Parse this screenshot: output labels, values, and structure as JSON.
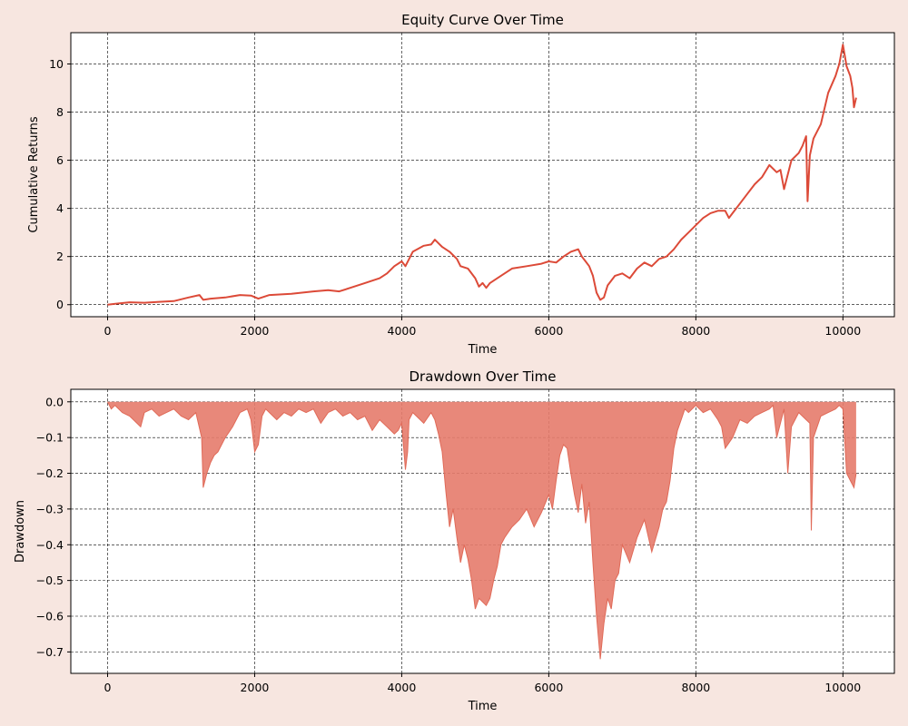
{
  "figure": {
    "background": "#f7e6e0"
  },
  "chart_data": [
    {
      "type": "line",
      "title": "Equity Curve Over Time",
      "xlabel": "Time",
      "ylabel": "Cumulative Returns",
      "xlim": [
        -500,
        10700
      ],
      "ylim": [
        -0.5,
        11.3
      ],
      "xticks": [
        0,
        2000,
        4000,
        6000,
        8000,
        10000
      ],
      "yticks": [
        0,
        2,
        4,
        6,
        8,
        10
      ],
      "grid": true,
      "color": "#dc4a38",
      "x": [
        0,
        150,
        300,
        500,
        700,
        900,
        1100,
        1250,
        1300,
        1400,
        1600,
        1800,
        1950,
        2050,
        2200,
        2500,
        2800,
        3000,
        3150,
        3300,
        3500,
        3700,
        3800,
        3900,
        4000,
        4050,
        4150,
        4300,
        4400,
        4450,
        4500,
        4550,
        4650,
        4750,
        4800,
        4900,
        5000,
        5050,
        5100,
        5150,
        5200,
        5300,
        5500,
        5700,
        5900,
        6000,
        6100,
        6200,
        6300,
        6400,
        6450,
        6500,
        6550,
        6600,
        6650,
        6700,
        6750,
        6800,
        6900,
        7000,
        7100,
        7200,
        7300,
        7400,
        7500,
        7600,
        7700,
        7800,
        7900,
        8000,
        8100,
        8200,
        8300,
        8400,
        8450,
        8500,
        8600,
        8700,
        8800,
        8900,
        9000,
        9100,
        9150,
        9200,
        9300,
        9400,
        9450,
        9500,
        9520,
        9550,
        9600,
        9700,
        9800,
        9900,
        9950,
        10000,
        10050,
        10100,
        10130,
        10150,
        10180
      ],
      "y": [
        0,
        0.05,
        0.1,
        0.08,
        0.12,
        0.15,
        0.3,
        0.4,
        0.2,
        0.25,
        0.3,
        0.4,
        0.38,
        0.25,
        0.4,
        0.45,
        0.55,
        0.6,
        0.55,
        0.7,
        0.9,
        1.1,
        1.3,
        1.6,
        1.8,
        1.6,
        2.2,
        2.45,
        2.5,
        2.7,
        2.55,
        2.4,
        2.2,
        1.9,
        1.6,
        1.5,
        1.1,
        0.75,
        0.9,
        0.7,
        0.9,
        1.1,
        1.5,
        1.6,
        1.7,
        1.8,
        1.75,
        2.0,
        2.2,
        2.3,
        2.0,
        1.8,
        1.6,
        1.2,
        0.5,
        0.2,
        0.3,
        0.8,
        1.2,
        1.3,
        1.1,
        1.5,
        1.75,
        1.6,
        1.9,
        2.0,
        2.3,
        2.7,
        3.0,
        3.3,
        3.6,
        3.8,
        3.9,
        3.9,
        3.6,
        3.8,
        4.2,
        4.6,
        5.0,
        5.3,
        5.8,
        5.5,
        5.6,
        4.8,
        6.0,
        6.3,
        6.6,
        7.0,
        4.3,
        6.2,
        6.9,
        7.5,
        8.8,
        9.5,
        10.0,
        10.8,
        9.9,
        9.5,
        9.0,
        8.2,
        8.6
      ],
      "mark_names": [
        "equity-line"
      ]
    },
    {
      "type": "area",
      "title": "Drawdown Over Time",
      "xlabel": "Time",
      "ylabel": "Drawdown",
      "xlim": [
        -500,
        10700
      ],
      "ylim": [
        -0.76,
        0.035
      ],
      "xticks": [
        0,
        2000,
        4000,
        6000,
        8000,
        10000
      ],
      "yticks": [
        0.0,
        -0.1,
        -0.2,
        -0.3,
        -0.4,
        -0.5,
        -0.6,
        -0.7
      ],
      "ytick_labels": [
        "0.0",
        "−0.1",
        "−0.2",
        "−0.3",
        "−0.4",
        "−0.5",
        "−0.6",
        "−0.7"
      ],
      "grid": true,
      "color": "#e06a58",
      "fill_color": "#e57b6b",
      "x": [
        0,
        50,
        100,
        200,
        300,
        400,
        450,
        500,
        600,
        700,
        800,
        900,
        1000,
        1100,
        1200,
        1280,
        1300,
        1350,
        1400,
        1450,
        1500,
        1600,
        1700,
        1750,
        1800,
        1900,
        1950,
        2000,
        2050,
        2100,
        2150,
        2200,
        2300,
        2400,
        2500,
        2600,
        2700,
        2800,
        2900,
        3000,
        3100,
        3200,
        3300,
        3400,
        3500,
        3600,
        3700,
        3800,
        3900,
        3950,
        4000,
        4050,
        4080,
        4100,
        4150,
        4200,
        4300,
        4400,
        4450,
        4500,
        4550,
        4600,
        4650,
        4700,
        4750,
        4800,
        4850,
        4900,
        4950,
        5000,
        5050,
        5100,
        5150,
        5200,
        5250,
        5300,
        5350,
        5400,
        5500,
        5600,
        5700,
        5800,
        5900,
        6000,
        6050,
        6100,
        6150,
        6200,
        6250,
        6300,
        6350,
        6400,
        6450,
        6500,
        6550,
        6600,
        6650,
        6700,
        6750,
        6800,
        6850,
        6900,
        6950,
        7000,
        7100,
        7200,
        7300,
        7400,
        7500,
        7550,
        7600,
        7650,
        7700,
        7750,
        7800,
        7850,
        7900,
        8000,
        8100,
        8200,
        8300,
        8350,
        8400,
        8500,
        8600,
        8700,
        8800,
        8900,
        9000,
        9050,
        9100,
        9150,
        9200,
        9250,
        9300,
        9400,
        9500,
        9550,
        9570,
        9600,
        9700,
        9800,
        9900,
        9950,
        10000,
        10050,
        10100,
        10150,
        10180
      ],
      "y": [
        0,
        -0.02,
        -0.01,
        -0.03,
        -0.04,
        -0.06,
        -0.07,
        -0.03,
        -0.02,
        -0.04,
        -0.03,
        -0.02,
        -0.04,
        -0.05,
        -0.03,
        -0.1,
        -0.24,
        -0.2,
        -0.17,
        -0.15,
        -0.14,
        -0.1,
        -0.07,
        -0.05,
        -0.03,
        -0.02,
        -0.05,
        -0.14,
        -0.12,
        -0.04,
        -0.02,
        -0.03,
        -0.05,
        -0.03,
        -0.04,
        -0.02,
        -0.03,
        -0.02,
        -0.06,
        -0.03,
        -0.02,
        -0.04,
        -0.03,
        -0.05,
        -0.04,
        -0.08,
        -0.05,
        -0.07,
        -0.09,
        -0.08,
        -0.06,
        -0.19,
        -0.14,
        -0.05,
        -0.03,
        -0.04,
        -0.06,
        -0.03,
        -0.05,
        -0.09,
        -0.14,
        -0.25,
        -0.35,
        -0.3,
        -0.38,
        -0.45,
        -0.4,
        -0.44,
        -0.5,
        -0.58,
        -0.55,
        -0.56,
        -0.57,
        -0.55,
        -0.5,
        -0.46,
        -0.4,
        -0.38,
        -0.35,
        -0.33,
        -0.3,
        -0.35,
        -0.31,
        -0.26,
        -0.3,
        -0.22,
        -0.15,
        -0.12,
        -0.13,
        -0.2,
        -0.26,
        -0.31,
        -0.23,
        -0.34,
        -0.28,
        -0.45,
        -0.6,
        -0.72,
        -0.62,
        -0.55,
        -0.58,
        -0.5,
        -0.48,
        -0.4,
        -0.45,
        -0.38,
        -0.33,
        -0.42,
        -0.35,
        -0.3,
        -0.28,
        -0.22,
        -0.13,
        -0.08,
        -0.05,
        -0.02,
        -0.03,
        -0.01,
        -0.03,
        -0.02,
        -0.05,
        -0.07,
        -0.13,
        -0.1,
        -0.05,
        -0.06,
        -0.04,
        -0.03,
        -0.02,
        -0.01,
        -0.1,
        -0.06,
        -0.02,
        -0.2,
        -0.07,
        -0.03,
        -0.05,
        -0.06,
        -0.36,
        -0.1,
        -0.04,
        -0.03,
        -0.02,
        -0.01,
        -0.02,
        -0.2,
        -0.22,
        -0.24,
        -0.2
      ],
      "mark_names": [
        "drawdown-area",
        "drawdown-line"
      ]
    }
  ]
}
